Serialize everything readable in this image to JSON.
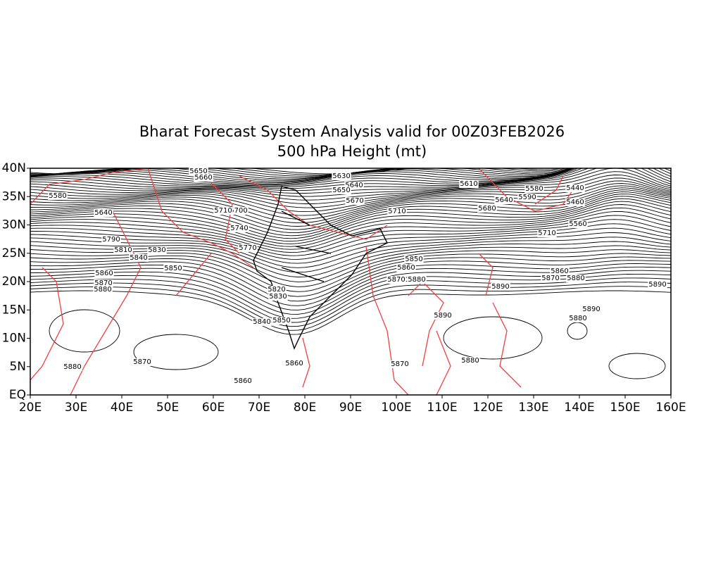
{
  "header": {
    "title": "Bharat Forecast System Analysis valid for 00Z03FEB2026",
    "subtitle": "500 hPa Height (mt)"
  },
  "map": {
    "lon_range": [
      20,
      160
    ],
    "lat_range": [
      0,
      40
    ],
    "lon_ticks": [
      {
        "value": 20,
        "label": "20E"
      },
      {
        "value": 30,
        "label": "30E"
      },
      {
        "value": 40,
        "label": "40E"
      },
      {
        "value": 50,
        "label": "50E"
      },
      {
        "value": 60,
        "label": "60E"
      },
      {
        "value": 70,
        "label": "70E"
      },
      {
        "value": 80,
        "label": "80E"
      },
      {
        "value": 90,
        "label": "90E"
      },
      {
        "value": 100,
        "label": "100E"
      },
      {
        "value": 110,
        "label": "110E"
      },
      {
        "value": 120,
        "label": "120E"
      },
      {
        "value": 130,
        "label": "130E"
      },
      {
        "value": 140,
        "label": "140E"
      },
      {
        "value": 150,
        "label": "150E"
      },
      {
        "value": 160,
        "label": "160E"
      }
    ],
    "lat_ticks": [
      {
        "value": 0,
        "label": "EQ"
      },
      {
        "value": 5,
        "label": "5N"
      },
      {
        "value": 10,
        "label": "10N"
      },
      {
        "value": 15,
        "label": "15N"
      },
      {
        "value": 20,
        "label": "20N"
      },
      {
        "value": 25,
        "label": "25N"
      },
      {
        "value": 30,
        "label": "30N"
      },
      {
        "value": 35,
        "label": "35N"
      },
      {
        "value": 40,
        "label": "40N"
      }
    ],
    "contour_labels": [
      5580,
      5640,
      5790,
      5810,
      5830,
      5840,
      5850,
      5860,
      5870,
      5880,
      5880,
      5870,
      5860,
      5650,
      5660,
      5700,
      5710,
      5740,
      5770,
      5840,
      5850,
      5860,
      5820,
      5830,
      5630,
      5640,
      5650,
      5670,
      5710,
      5850,
      5860,
      5870,
      5880,
      5870,
      5890,
      5880,
      5890,
      5610,
      5580,
      5590,
      5640,
      5680,
      5440,
      5460,
      5560,
      5710,
      5870,
      5880,
      5860,
      5890,
      5880,
      5890
    ]
  }
}
